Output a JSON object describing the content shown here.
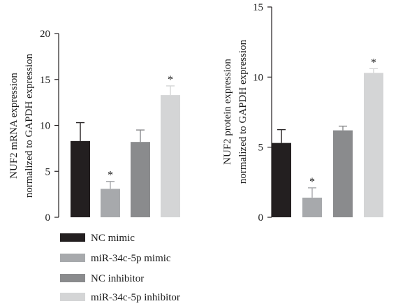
{
  "chart_data": [
    {
      "type": "bar",
      "categories": [
        "NC mimic",
        "miR-34c-5p mimic",
        "NC inhibitor",
        "miR-34c-5p inhibitor"
      ],
      "values": [
        8.3,
        3.1,
        8.2,
        13.3
      ],
      "errors": [
        2.0,
        0.8,
        1.3,
        1.0
      ],
      "significance": [
        "",
        "*",
        "",
        "*"
      ],
      "ylabel_lines": [
        "NUF2 mRNA expression",
        "normalized to GAPDH expression"
      ],
      "ylim": [
        0,
        20
      ],
      "yticks": [
        0,
        5,
        10,
        15,
        20
      ],
      "xlabel": "",
      "title": ""
    },
    {
      "type": "bar",
      "categories": [
        "NC mimic",
        "miR-34c-5p mimic",
        "NC inhibitor",
        "miR-34c-5p inhibitor"
      ],
      "values": [
        5.3,
        1.4,
        6.2,
        10.3
      ],
      "errors": [
        0.95,
        0.7,
        0.3,
        0.3
      ],
      "significance": [
        "",
        "*",
        "",
        "*"
      ],
      "ylabel_lines": [
        "NUF2 protein expression",
        "normalized to GAPDH expression"
      ],
      "ylim": [
        0,
        15
      ],
      "yticks": [
        0,
        5,
        10,
        15
      ],
      "xlabel": "",
      "title": ""
    }
  ],
  "legend": {
    "placement": "bottom-left",
    "items": [
      {
        "label": "NC mimic",
        "color": "#231f20"
      },
      {
        "label": "miR-34c-5p mimic",
        "color": "#a7a9ac"
      },
      {
        "label": "NC inhibitor",
        "color": "#8a8b8d"
      },
      {
        "label": "miR-34c-5p inhibitor",
        "color": "#d4d5d6"
      }
    ]
  }
}
